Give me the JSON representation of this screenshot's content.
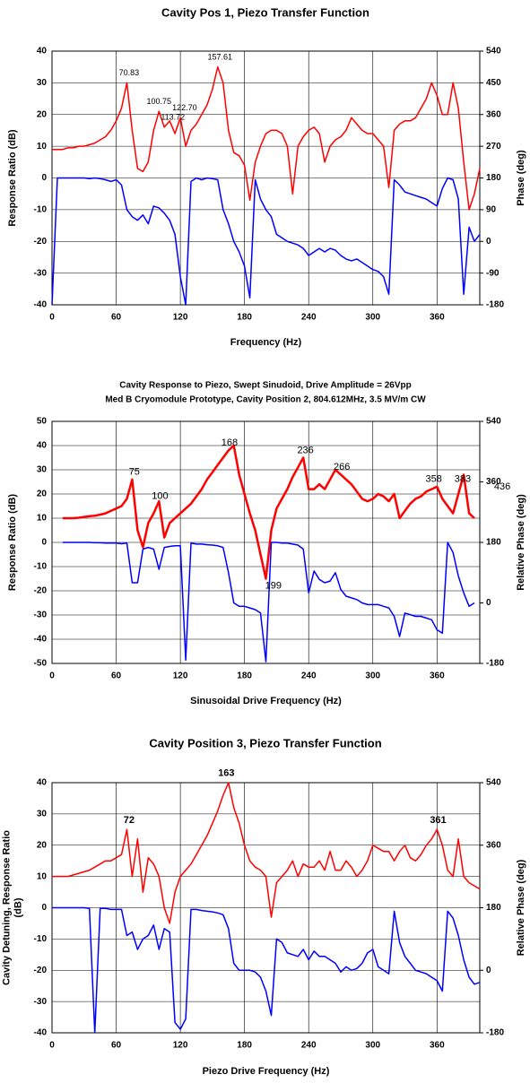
{
  "chart_data": [
    {
      "type": "line",
      "title": "Cavity Pos 1, Piezo Transfer Function",
      "xlabel": "Frequency (Hz)",
      "ylabel": "Response Ratio (dB)",
      "y2label": "Phase (deg)",
      "xlim": [
        0,
        400
      ],
      "xticks": [
        0,
        60,
        120,
        180,
        240,
        300,
        360
      ],
      "ylim": [
        -40,
        40
      ],
      "yticks": [
        -40,
        -30,
        -20,
        -10,
        0,
        10,
        20,
        30,
        40
      ],
      "y2lim": [
        -180,
        540
      ],
      "y2ticks": [
        -180,
        -90,
        0,
        90,
        180,
        270,
        360,
        450,
        540
      ],
      "grid": true,
      "x": [
        0,
        5,
        10,
        15,
        20,
        25,
        30,
        35,
        40,
        45,
        50,
        55,
        60,
        65,
        70,
        75,
        80,
        85,
        90,
        95,
        100,
        105,
        110,
        115,
        120,
        125,
        130,
        135,
        140,
        145,
        150,
        155,
        160,
        165,
        170,
        175,
        180,
        185,
        190,
        195,
        200,
        205,
        210,
        215,
        220,
        225,
        230,
        235,
        240,
        245,
        250,
        255,
        260,
        265,
        270,
        275,
        280,
        285,
        290,
        295,
        300,
        305,
        310,
        315,
        320,
        325,
        330,
        335,
        340,
        345,
        350,
        355,
        360,
        365,
        370,
        375,
        380,
        385,
        390,
        395,
        400
      ],
      "series": [
        {
          "color": "#ff0000",
          "axis": "y",
          "values": [
            9,
            9,
            9,
            9.5,
            9.5,
            10,
            10,
            10.5,
            11,
            12,
            13,
            15,
            18,
            22,
            30,
            15,
            3,
            2,
            5,
            15,
            21,
            16,
            18,
            14,
            19,
            10,
            15,
            17,
            20,
            23,
            28,
            35,
            30,
            15,
            8,
            7,
            4,
            -7,
            5,
            10,
            14,
            15,
            15,
            14,
            10,
            -5,
            10,
            13,
            15,
            16,
            14,
            5,
            10,
            12,
            13,
            15,
            19,
            17,
            15,
            14,
            14,
            12,
            10,
            -3,
            15,
            17,
            18,
            18,
            19,
            22,
            25,
            30,
            26,
            20,
            20,
            30,
            22,
            5,
            -10,
            -5,
            3
          ]
        },
        {
          "color": "#0000ff",
          "axis": "y2",
          "values": [
            -180,
            180,
            180,
            180,
            180,
            180,
            180,
            178,
            180,
            178,
            175,
            170,
            175,
            160,
            90,
            70,
            60,
            75,
            50,
            100,
            95,
            80,
            60,
            20,
            -100,
            -180,
            170,
            180,
            175,
            180,
            178,
            175,
            90,
            50,
            0,
            -30,
            -70,
            -160,
            175,
            120,
            90,
            70,
            20,
            10,
            0,
            -5,
            -10,
            -20,
            -40,
            -30,
            -20,
            -30,
            -20,
            -25,
            -40,
            -50,
            -55,
            -50,
            -60,
            -70,
            -80,
            -85,
            -100,
            -150,
            175,
            160,
            140,
            135,
            130,
            125,
            120,
            110,
            100,
            150,
            180,
            175,
            120,
            -150,
            40,
            0,
            20
          ]
        }
      ],
      "annotations": [
        {
          "text": "70.83",
          "x": 72,
          "y": 33
        },
        {
          "text": "100.75",
          "x": 100,
          "y": 24
        },
        {
          "text": "113.72",
          "x": 113,
          "y": 19
        },
        {
          "text": "122.70",
          "x": 124,
          "y": 22
        },
        {
          "text": "157.61",
          "x": 157,
          "y": 38
        }
      ]
    },
    {
      "type": "line",
      "title": "Cavity Response to Piezo, Swept Sinudoid, Drive Amplitude = 26Vpp",
      "subtitle": "Med B Cryomodule Prototype, Cavity Position 2, 804.612MHz, 3.5 MV/m CW",
      "xlabel": "Sinusoidal Drive Frequency (Hz)",
      "ylabel": "Response Ratio (dB)",
      "y2label": "Relative Phase (deg)",
      "xlim": [
        0,
        400
      ],
      "xticks": [
        0,
        60,
        120,
        180,
        240,
        300,
        360
      ],
      "ylim": [
        -50,
        50
      ],
      "yticks": [
        -50,
        -40,
        -30,
        -20,
        -10,
        0,
        10,
        20,
        30,
        40,
        50
      ],
      "y2lim": [
        -180,
        540
      ],
      "y2ticks": [
        -180,
        0,
        180,
        360,
        540
      ],
      "grid": true,
      "x": [
        10,
        15,
        20,
        25,
        30,
        35,
        40,
        45,
        50,
        55,
        60,
        65,
        70,
        75,
        80,
        85,
        90,
        95,
        100,
        105,
        110,
        115,
        120,
        125,
        130,
        135,
        140,
        145,
        150,
        155,
        160,
        165,
        170,
        175,
        180,
        185,
        190,
        195,
        200,
        205,
        210,
        215,
        220,
        225,
        230,
        235,
        240,
        245,
        250,
        255,
        260,
        265,
        270,
        275,
        280,
        285,
        290,
        295,
        300,
        305,
        310,
        315,
        320,
        325,
        330,
        335,
        340,
        345,
        350,
        355,
        360,
        365,
        370,
        375,
        380,
        385,
        390,
        395
      ],
      "series": [
        {
          "color": "#ff0000",
          "axis": "y",
          "width": 2.5,
          "values": [
            10,
            10,
            10,
            10.2,
            10.5,
            10.8,
            11,
            11.5,
            12,
            13,
            14,
            15,
            18,
            26,
            5,
            -2,
            8,
            12,
            17,
            2,
            8,
            10,
            12,
            14,
            16,
            19,
            22,
            26,
            29,
            32,
            35,
            38,
            40,
            28,
            20,
            12,
            5,
            -5,
            -15,
            5,
            14,
            18,
            22,
            27,
            31,
            35,
            22,
            22,
            24,
            22,
            26,
            30,
            28,
            26,
            24,
            21,
            18,
            17,
            18,
            20,
            19,
            17,
            20,
            10,
            13,
            16,
            18,
            19,
            21,
            22,
            23,
            18,
            15,
            12,
            20,
            28,
            12,
            10
          ]
        },
        {
          "color": "#0000ff",
          "axis": "y2",
          "values": [
            180,
            180,
            180,
            180,
            180,
            180,
            179,
            179,
            178,
            178,
            178,
            176,
            178,
            60,
            60,
            160,
            165,
            160,
            100,
            165,
            168,
            170,
            170,
            -170,
            178,
            175,
            175,
            173,
            172,
            170,
            165,
            90,
            0,
            -10,
            -10,
            -15,
            -20,
            -30,
            -175,
            180,
            180,
            178,
            178,
            175,
            172,
            160,
            30,
            95,
            70,
            60,
            65,
            90,
            40,
            20,
            15,
            10,
            0,
            -5,
            -5,
            -5,
            -10,
            -15,
            -40,
            -100,
            -30,
            -35,
            -40,
            -40,
            -45,
            -50,
            -80,
            -90,
            180,
            150,
            80,
            30,
            -10,
            0
          ]
        }
      ],
      "annotations": [
        {
          "text": "75",
          "x": 77,
          "y": 29
        },
        {
          "text": "100",
          "x": 101,
          "y": 19
        },
        {
          "text": "168",
          "x": 166,
          "y": 41
        },
        {
          "text": "236",
          "x": 237,
          "y": 38
        },
        {
          "text": "266",
          "x": 271,
          "y": 31
        },
        {
          "text": "199",
          "x": 207,
          "y": -18
        },
        {
          "text": "358",
          "x": 357,
          "y": 26
        },
        {
          "text": "383",
          "x": 384,
          "y": 26
        },
        {
          "text": "436",
          "x": 421,
          "y": 23
        }
      ]
    },
    {
      "type": "line",
      "title": "Cavity Position 3, Piezo Transfer Function",
      "xlabel": "Piezo Drive Frequency (Hz)",
      "ylabel": [
        "Cavity Detuning, Response Ratio",
        "(dB)"
      ],
      "y2label": "Relative Phase (deg)",
      "xlim": [
        0,
        400
      ],
      "xticks": [
        0,
        60,
        120,
        180,
        240,
        300,
        360
      ],
      "ylim": [
        -40,
        40
      ],
      "yticks": [
        -40,
        -30,
        -20,
        -10,
        0,
        10,
        20,
        30,
        40
      ],
      "y2lim": [
        -180,
        540
      ],
      "y2ticks": [
        -180,
        0,
        180,
        360,
        540
      ],
      "grid": true,
      "x": [
        0,
        5,
        10,
        15,
        20,
        25,
        30,
        35,
        40,
        45,
        50,
        55,
        60,
        65,
        70,
        75,
        80,
        85,
        90,
        95,
        100,
        105,
        110,
        115,
        120,
        125,
        130,
        135,
        140,
        145,
        150,
        155,
        160,
        165,
        170,
        175,
        180,
        185,
        190,
        195,
        200,
        205,
        210,
        215,
        220,
        225,
        230,
        235,
        240,
        245,
        250,
        255,
        260,
        265,
        270,
        275,
        280,
        285,
        290,
        295,
        300,
        305,
        310,
        315,
        320,
        325,
        330,
        335,
        340,
        345,
        350,
        355,
        360,
        365,
        370,
        375,
        380,
        385,
        390,
        395,
        400
      ],
      "series": [
        {
          "color": "#ff0000",
          "axis": "y",
          "values": [
            10,
            10,
            10,
            10,
            10.5,
            11,
            11.5,
            12,
            13,
            14,
            15,
            15,
            16,
            17,
            25,
            10,
            22,
            5,
            16,
            14,
            10,
            0,
            -5,
            5,
            10,
            12,
            14,
            17,
            20,
            23,
            27,
            31,
            36,
            40,
            32,
            27,
            20,
            15,
            13,
            12,
            10,
            -3,
            8,
            10,
            12,
            15,
            10,
            14,
            13,
            13,
            15,
            12,
            18,
            12,
            12,
            15,
            13,
            10,
            12,
            15,
            20,
            19,
            18,
            18,
            15,
            18,
            20,
            16,
            15,
            17,
            20,
            22,
            25,
            20,
            12,
            10,
            22,
            10,
            8,
            7,
            6
          ]
        },
        {
          "color": "#0000ff",
          "axis": "y2",
          "values": [
            180,
            180,
            180,
            180,
            180,
            180,
            180,
            178,
            -180,
            178,
            178,
            175,
            175,
            175,
            100,
            110,
            60,
            90,
            100,
            130,
            60,
            120,
            110,
            -150,
            -170,
            -140,
            175,
            175,
            172,
            170,
            168,
            165,
            160,
            120,
            20,
            0,
            0,
            0,
            -5,
            -20,
            -60,
            -130,
            90,
            80,
            50,
            45,
            40,
            60,
            30,
            55,
            40,
            40,
            30,
            20,
            -5,
            10,
            0,
            5,
            20,
            50,
            60,
            10,
            0,
            -10,
            170,
            80,
            40,
            20,
            0,
            -5,
            -10,
            -20,
            -30,
            -60,
            170,
            150,
            100,
            30,
            -20,
            -40,
            -35
          ]
        }
      ],
      "annotations": [
        {
          "text": "72",
          "x": 72,
          "y": 28
        },
        {
          "text": "163",
          "x": 163,
          "y": 43
        },
        {
          "text": "361",
          "x": 361,
          "y": 28
        }
      ]
    }
  ]
}
